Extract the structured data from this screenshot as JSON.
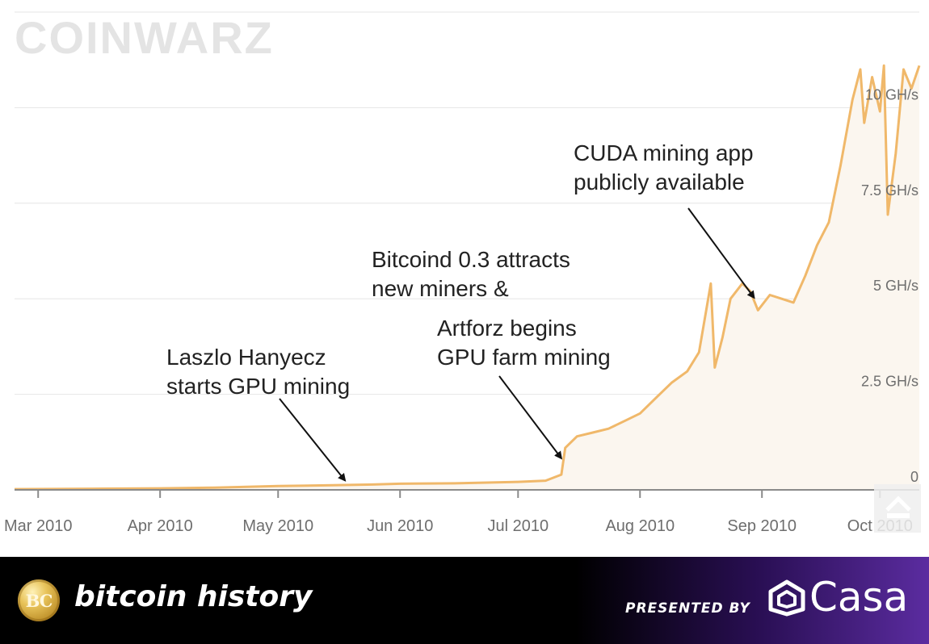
{
  "watermark": "COINWARZ",
  "chart_data": {
    "type": "area",
    "title": "",
    "xlabel": "",
    "ylabel": "",
    "ylim": [
      0,
      12.5
    ],
    "xlim": [
      "2010-02-23",
      "2010-10-11"
    ],
    "grid": true,
    "line_color": "#f0b86a",
    "fill_color": "#fbf6ef",
    "x_ticks": [
      {
        "label": "Mar 2010",
        "date": "2010-03-01"
      },
      {
        "label": "Apr 2010",
        "date": "2010-04-01"
      },
      {
        "label": "May 2010",
        "date": "2010-05-01"
      },
      {
        "label": "Jun 2010",
        "date": "2010-06-01"
      },
      {
        "label": "Jul 2010",
        "date": "2010-07-01"
      },
      {
        "label": "Aug 2010",
        "date": "2010-08-01"
      },
      {
        "label": "Sep 2010",
        "date": "2010-09-01"
      },
      {
        "label": "Oct 2010",
        "date": "2010-10-01"
      }
    ],
    "y_ticks": [
      {
        "label": "0",
        "value": 0
      },
      {
        "label": "2.5 GH/s",
        "value": 2.5
      },
      {
        "label": "5 GH/s",
        "value": 5
      },
      {
        "label": "7.5 GH/s",
        "value": 7.5
      },
      {
        "label": "10 GH/s",
        "value": 10
      }
    ],
    "series": [
      {
        "values": [
          [
            "2010-02-23",
            0.02
          ],
          [
            "2010-03-15",
            0.03
          ],
          [
            "2010-04-01",
            0.04
          ],
          [
            "2010-04-15",
            0.06
          ],
          [
            "2010-05-01",
            0.1
          ],
          [
            "2010-05-15",
            0.12
          ],
          [
            "2010-05-25",
            0.14
          ],
          [
            "2010-06-01",
            0.16
          ],
          [
            "2010-06-15",
            0.17
          ],
          [
            "2010-07-01",
            0.21
          ],
          [
            "2010-07-08",
            0.24
          ],
          [
            "2010-07-12",
            0.4
          ],
          [
            "2010-07-13",
            1.1
          ],
          [
            "2010-07-16",
            1.4
          ],
          [
            "2010-07-20",
            1.5
          ],
          [
            "2010-07-24",
            1.6
          ],
          [
            "2010-07-28",
            1.8
          ],
          [
            "2010-08-01",
            2.0
          ],
          [
            "2010-08-05",
            2.4
          ],
          [
            "2010-08-09",
            2.8
          ],
          [
            "2010-08-13",
            3.1
          ],
          [
            "2010-08-16",
            3.6
          ],
          [
            "2010-08-19",
            5.4
          ],
          [
            "2010-08-20",
            3.2
          ],
          [
            "2010-08-22",
            4.0
          ],
          [
            "2010-08-24",
            5.0
          ],
          [
            "2010-08-27",
            5.4
          ],
          [
            "2010-08-29",
            5.2
          ],
          [
            "2010-08-31",
            4.7
          ],
          [
            "2010-09-03",
            5.1
          ],
          [
            "2010-09-06",
            5.0
          ],
          [
            "2010-09-09",
            4.9
          ],
          [
            "2010-09-12",
            5.6
          ],
          [
            "2010-09-15",
            6.4
          ],
          [
            "2010-09-18",
            7.0
          ],
          [
            "2010-09-21",
            8.5
          ],
          [
            "2010-09-24",
            10.2
          ],
          [
            "2010-09-26",
            11.0
          ],
          [
            "2010-09-27",
            9.6
          ],
          [
            "2010-09-29",
            10.8
          ],
          [
            "2010-10-01",
            9.9
          ],
          [
            "2010-10-02",
            11.1
          ],
          [
            "2010-10-03",
            7.2
          ],
          [
            "2010-10-05",
            8.8
          ],
          [
            "2010-10-07",
            11.0
          ],
          [
            "2010-10-09",
            10.5
          ],
          [
            "2010-10-11",
            11.1
          ]
        ]
      }
    ],
    "annotations": [
      {
        "lines": [
          "Laszlo Hanyecz",
          "starts GPU mining"
        ],
        "date": "2010-05-18",
        "value": 0.12
      },
      {
        "lines": [
          "Bitcoind 0.3 attracts",
          "new miners &"
        ],
        "date": "",
        "value": null
      },
      {
        "lines": [
          "Artforz begins",
          "GPU farm mining"
        ],
        "date": "2010-07-12",
        "value": 0.7
      },
      {
        "lines": [
          "CUDA mining app",
          "publicly available"
        ],
        "date": "2010-08-30",
        "value": 4.9
      }
    ]
  },
  "footer": {
    "coin_text": "BC",
    "brand": "bitcoin history",
    "presented_by": "PRESENTED BY",
    "sponsor": "Casa"
  }
}
